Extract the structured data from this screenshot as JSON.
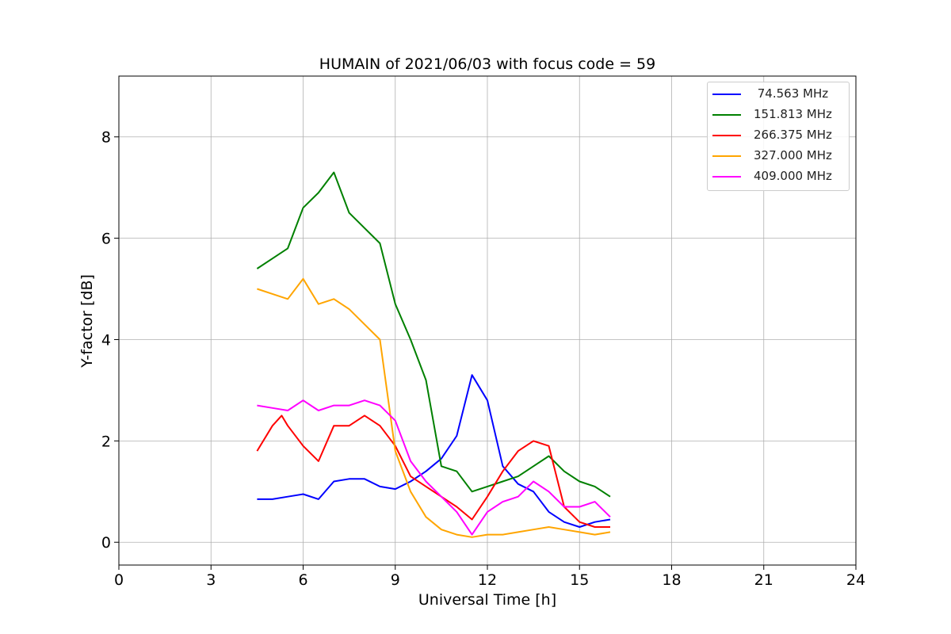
{
  "chart_data": {
    "type": "line",
    "title": "HUMAIN of 2021/06/03 with focus code = 59",
    "xlabel": "Universal Time [h]",
    "ylabel": "Y-factor [dB]",
    "xlim": [
      0,
      24
    ],
    "ylim": [
      -0.45,
      9.2
    ],
    "xticks": [
      "0",
      "3",
      "6",
      "9",
      "12",
      "15",
      "18",
      "21",
      "24"
    ],
    "yticks": [
      "0",
      "2",
      "4",
      "6",
      "8"
    ],
    "grid": true,
    "legend_position": "top-right",
    "series": [
      {
        "name": " 74.563 MHz",
        "color": "#0000ff",
        "x": [
          4.5,
          5.0,
          5.5,
          6.0,
          6.5,
          7.0,
          7.5,
          8.0,
          8.5,
          9.0,
          9.5,
          10.0,
          10.5,
          11.0,
          11.5,
          12.0,
          12.5,
          13.0,
          13.5,
          14.0,
          14.5,
          15.0,
          15.5,
          16.0
        ],
        "y": [
          0.85,
          0.85,
          0.9,
          0.95,
          0.85,
          1.2,
          1.25,
          1.25,
          1.1,
          1.05,
          1.2,
          1.4,
          1.65,
          2.1,
          3.3,
          2.8,
          1.5,
          1.15,
          1.0,
          0.6,
          0.4,
          0.3,
          0.4,
          0.45
        ]
      },
      {
        "name": "151.813 MHz",
        "color": "#008000",
        "x": [
          4.5,
          5.0,
          5.5,
          6.0,
          6.5,
          7.0,
          7.5,
          8.0,
          8.5,
          9.0,
          9.5,
          10.0,
          10.5,
          11.0,
          11.5,
          12.0,
          12.5,
          13.0,
          13.5,
          14.0,
          14.5,
          15.0,
          15.5,
          16.0
        ],
        "y": [
          5.4,
          5.6,
          5.8,
          6.6,
          6.9,
          7.3,
          6.5,
          6.2,
          5.9,
          4.7,
          4.0,
          3.2,
          1.5,
          1.4,
          1.0,
          1.1,
          1.2,
          1.3,
          1.5,
          1.7,
          1.4,
          1.2,
          1.1,
          0.9
        ]
      },
      {
        "name": "266.375 MHz",
        "color": "#ff0000",
        "x": [
          4.5,
          5.0,
          5.3,
          5.5,
          6.0,
          6.5,
          7.0,
          7.5,
          8.0,
          8.5,
          9.0,
          9.5,
          10.0,
          10.5,
          11.0,
          11.5,
          12.0,
          12.5,
          13.0,
          13.5,
          14.0,
          14.5,
          15.0,
          15.5,
          16.0
        ],
        "y": [
          1.8,
          2.3,
          2.5,
          2.3,
          1.9,
          1.6,
          2.3,
          2.3,
          2.5,
          2.3,
          1.9,
          1.3,
          1.1,
          0.9,
          0.7,
          0.45,
          0.9,
          1.4,
          1.8,
          2.0,
          1.9,
          0.7,
          0.4,
          0.3,
          0.3
        ]
      },
      {
        "name": "327.000 MHz",
        "color": "#ffa500",
        "x": [
          4.5,
          5.0,
          5.5,
          6.0,
          6.5,
          7.0,
          7.5,
          8.0,
          8.5,
          9.0,
          9.5,
          10.0,
          10.5,
          11.0,
          11.5,
          12.0,
          12.5,
          13.0,
          13.5,
          14.0,
          14.5,
          15.0,
          15.5,
          16.0
        ],
        "y": [
          5.0,
          4.9,
          4.8,
          5.2,
          4.7,
          4.8,
          4.6,
          4.3,
          4.0,
          1.8,
          1.0,
          0.5,
          0.25,
          0.15,
          0.1,
          0.15,
          0.15,
          0.2,
          0.25,
          0.3,
          0.25,
          0.2,
          0.15,
          0.2
        ]
      },
      {
        "name": "409.000 MHz",
        "color": "#ff00ff",
        "x": [
          4.5,
          5.0,
          5.5,
          6.0,
          6.5,
          7.0,
          7.5,
          8.0,
          8.5,
          9.0,
          9.5,
          10.0,
          10.5,
          11.0,
          11.5,
          12.0,
          12.5,
          13.0,
          13.5,
          14.0,
          14.5,
          15.0,
          15.5,
          16.0
        ],
        "y": [
          2.7,
          2.65,
          2.6,
          2.8,
          2.6,
          2.7,
          2.7,
          2.8,
          2.7,
          2.4,
          1.6,
          1.2,
          0.9,
          0.6,
          0.15,
          0.6,
          0.8,
          0.9,
          1.2,
          1.0,
          0.7,
          0.7,
          0.8,
          0.5
        ]
      }
    ]
  }
}
